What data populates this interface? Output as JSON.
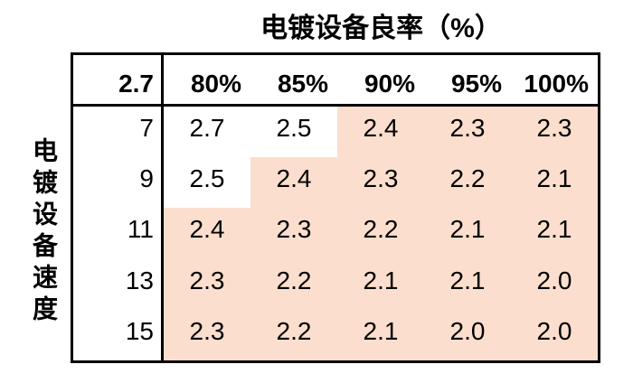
{
  "title": "电镀设备良率（%）",
  "colors": {
    "highlight": "#FBDECD",
    "border": "#000000",
    "text": "#000000",
    "background": "#FFFFFF"
  },
  "chart_data": {
    "type": "table",
    "title": "电镀设备良率（%）",
    "row_axis_label": "电镀设备速度",
    "corner_value": "2.7",
    "col_headers": [
      "80%",
      "85%",
      "90%",
      "95%",
      "100%"
    ],
    "row_headers": [
      "7",
      "9",
      "11",
      "13",
      "15"
    ],
    "rows": [
      {
        "header": "7",
        "values": [
          "2.7",
          "2.5",
          "2.4",
          "2.3",
          "2.3"
        ]
      },
      {
        "header": "9",
        "values": [
          "2.5",
          "2.4",
          "2.3",
          "2.2",
          "2.1"
        ]
      },
      {
        "header": "11",
        "values": [
          "2.4",
          "2.3",
          "2.2",
          "2.1",
          "2.1"
        ]
      },
      {
        "header": "13",
        "values": [
          "2.3",
          "2.2",
          "2.1",
          "2.1",
          "2.0"
        ]
      },
      {
        "header": "15",
        "values": [
          "2.3",
          "2.2",
          "2.1",
          "2.0",
          "2.0"
        ]
      }
    ],
    "highlight": [
      [
        false,
        false,
        true,
        true,
        true
      ],
      [
        false,
        true,
        true,
        true,
        true
      ],
      [
        true,
        true,
        true,
        true,
        true
      ],
      [
        true,
        true,
        true,
        true,
        true
      ],
      [
        true,
        true,
        true,
        true,
        true
      ]
    ]
  }
}
